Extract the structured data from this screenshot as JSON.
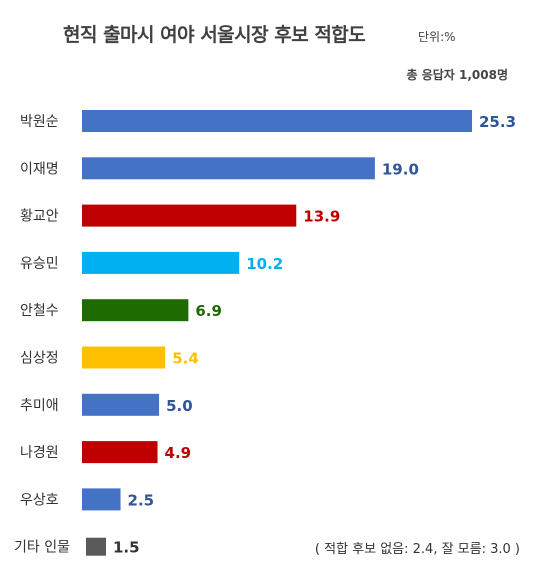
{
  "header": {
    "title": "현직 출마시 여야 서울시장 후보 적합도",
    "unit": "단위:%",
    "respondents": "총 응답자 1,008명"
  },
  "footnote": "( 적합 후보 없음: 2.4, 잘 모름: 3.0 )",
  "chart_data": {
    "type": "bar",
    "orientation": "horizontal",
    "title": "현직 출마시 여야 서울시장 후보 적합도",
    "categories": [
      "박원순",
      "이재명",
      "황교안",
      "유승민",
      "안철수",
      "심상정",
      "추미애",
      "나경원",
      "우상호",
      "기타 인물"
    ],
    "values": [
      25.3,
      19.0,
      13.9,
      10.2,
      6.9,
      5.4,
      5.0,
      4.9,
      2.5,
      1.5
    ],
    "value_labels": [
      "25.3",
      "19.0",
      "13.9",
      "10.2",
      "6.9",
      "5.4",
      "5.0",
      "4.9",
      "2.5",
      "1.5"
    ],
    "bar_colors": [
      "#4472c4",
      "#4472c4",
      "#c00000",
      "#00b0f0",
      "#1e6b00",
      "#ffc000",
      "#4472c4",
      "#c00000",
      "#4472c4",
      "#595959"
    ],
    "label_colors": [
      "#2f5597",
      "#2f5597",
      "#c00000",
      "#00b0f0",
      "#1e6b00",
      "#ffc000",
      "#2f5597",
      "#c00000",
      "#2f5597",
      "#333333"
    ],
    "xlim": [
      0,
      25.3
    ],
    "grid": false,
    "legend": "none"
  }
}
